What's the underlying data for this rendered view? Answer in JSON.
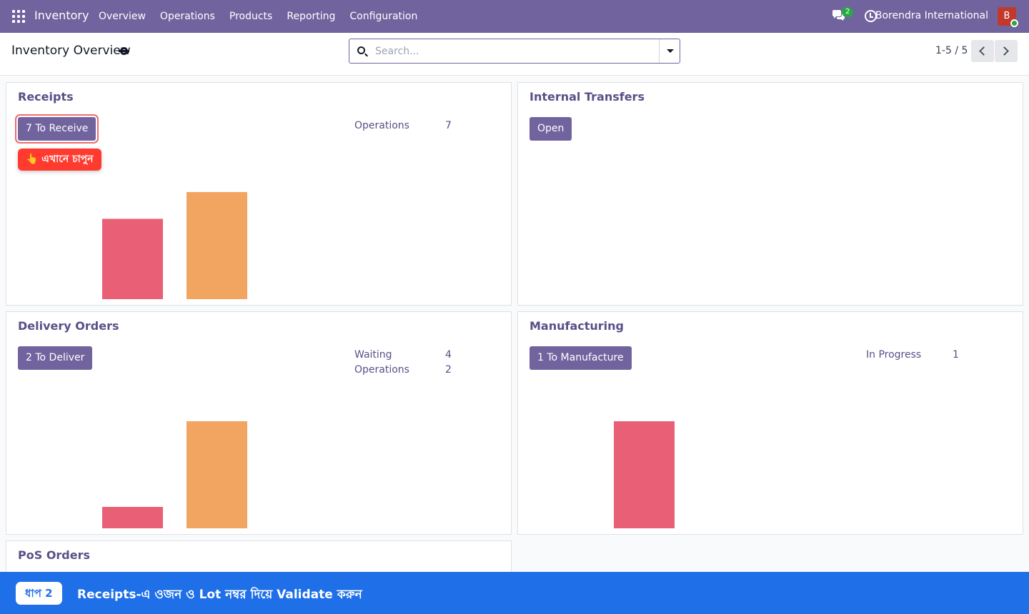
{
  "navbar": {
    "app_name": "Inventory",
    "menu": [
      "Overview",
      "Operations",
      "Products",
      "Reporting",
      "Configuration"
    ],
    "chat_count": "2",
    "company": "Borendra International",
    "avatar_initial": "B",
    "icons": [
      "apps-icon",
      "chat-icon",
      "clock-icon"
    ]
  },
  "control": {
    "title": "Inventory Overview",
    "search_placeholder": "Search...",
    "pager": "1-5 / 5"
  },
  "cards": {
    "receipts": {
      "title": "Receipts",
      "button": "7 To Receive",
      "stats": [
        {
          "label": "Operations",
          "value": "7"
        }
      ]
    },
    "internal": {
      "title": "Internal Transfers",
      "button": "Open"
    },
    "delivery": {
      "title": "Delivery Orders",
      "button": "2 To Deliver",
      "stats": [
        {
          "label": "Waiting",
          "value": "4"
        },
        {
          "label": "Operations",
          "value": "2"
        }
      ]
    },
    "manufacturing": {
      "title": "Manufacturing",
      "button": "1 To Manufacture",
      "stats": [
        {
          "label": "In Progress",
          "value": "1"
        }
      ]
    },
    "pos": {
      "title": "PoS Orders"
    }
  },
  "chart_data": [
    {
      "type": "bar",
      "card": "Receipts",
      "values": [
        3,
        4
      ],
      "colors": [
        "#e95f75",
        "#f2a461"
      ],
      "ylim": [
        0,
        4
      ]
    },
    {
      "type": "bar",
      "card": "Delivery Orders",
      "values": [
        0.8,
        4
      ],
      "colors": [
        "#e95f75",
        "#f2a461"
      ],
      "ylim": [
        0,
        4
      ]
    },
    {
      "type": "bar",
      "card": "Manufacturing",
      "values": [
        1
      ],
      "colors": [
        "#e95f75"
      ],
      "ylim": [
        0,
        1
      ]
    }
  ],
  "tutorial": {
    "hint": "👆 এখানে চাপুন",
    "step_label": "ধাপ 2",
    "step_text": "Receipts-এ ওজন ও Lot নম্বর দিয়ে Validate করুন"
  },
  "colors": {
    "navbar": "#71639e",
    "primary_button": "#71639e",
    "bar_red": "#e95f75",
    "bar_orange": "#f2a461",
    "hint": "#ff3b30",
    "banner": "#1f6fe8"
  }
}
